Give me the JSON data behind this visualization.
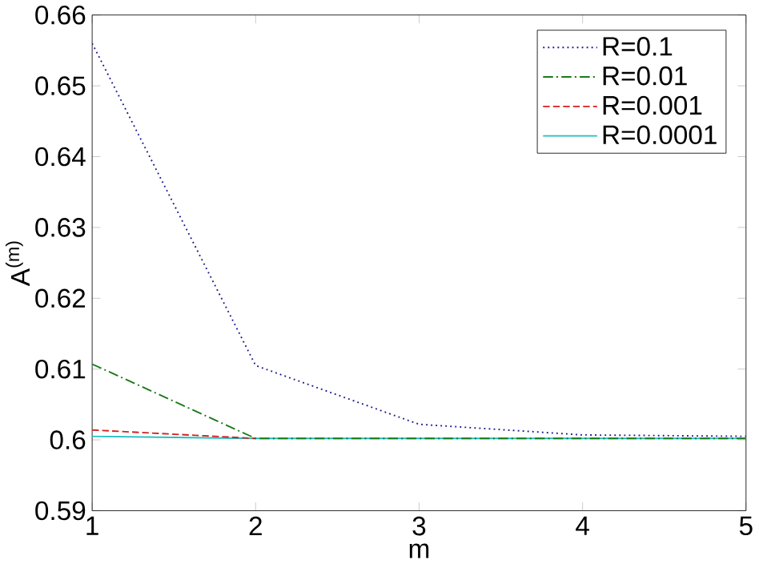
{
  "chart_data": {
    "type": "line",
    "xlabel": "m",
    "ylabel": "A$^{(m)}$",
    "x": [
      1,
      2,
      3,
      4,
      5
    ],
    "xlim": [
      1,
      5
    ],
    "xticks": [
      1,
      2,
      3,
      4,
      5
    ],
    "ylim": [
      0.59,
      0.66
    ],
    "yticks": [
      0.59,
      0.6,
      0.61,
      0.62,
      0.63,
      0.64,
      0.65,
      0.66
    ],
    "legend": "top right",
    "grid": false,
    "series": [
      {
        "name": "R=0.1",
        "color": "#1a1a8c",
        "line_style": "dotted",
        "values": [
          0.656,
          0.6105,
          0.6022,
          0.6007,
          0.6005
        ]
      },
      {
        "name": "R=0.01",
        "color": "#1a7a1a",
        "line_style": "dashdot",
        "values": [
          0.6107,
          0.6002,
          0.6002,
          0.6002,
          0.6002
        ]
      },
      {
        "name": "R=0.001",
        "color": "#d42020",
        "line_style": "dashed",
        "values": [
          0.6014,
          0.6002,
          null,
          null,
          null
        ]
      },
      {
        "name": "R=0.0001",
        "color": "#20c0c0",
        "line_style": "solid",
        "values": [
          0.6005,
          0.6002,
          0.6002,
          0.6002,
          0.6002
        ]
      }
    ]
  }
}
